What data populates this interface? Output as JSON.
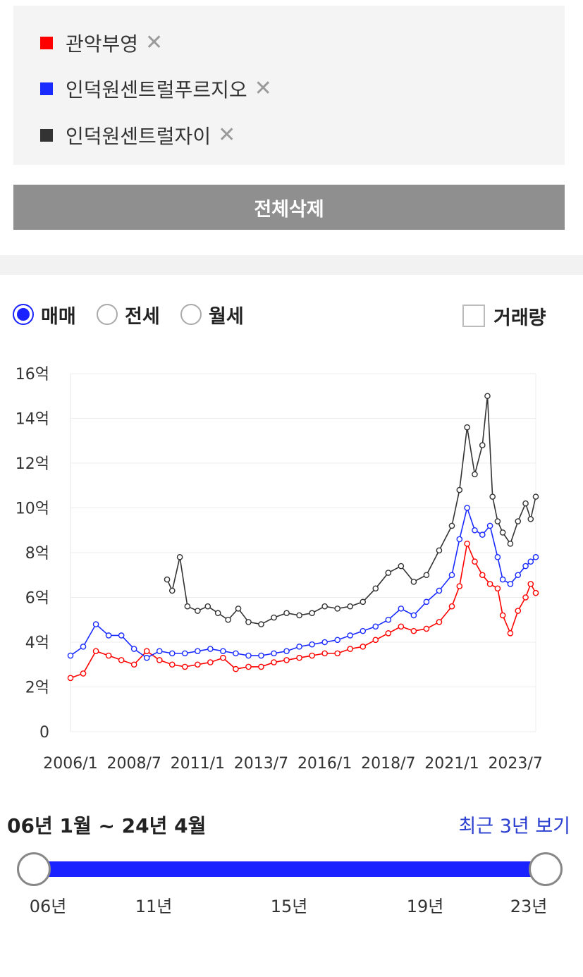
{
  "legend": {
    "items": [
      {
        "name": "관악부영",
        "color": "#ff0000"
      },
      {
        "name": "인덕원센트럴푸르지오",
        "color": "#1a2bff"
      },
      {
        "name": "인덕원센트럴자이",
        "color": "#333333"
      }
    ],
    "remove_glyph": "✕"
  },
  "delete_all_label": "전체삭제",
  "trade_types": {
    "options": [
      "매매",
      "전세",
      "월세"
    ],
    "selected": "매매"
  },
  "volume_label": "거래량",
  "chart_data": {
    "type": "line",
    "y_ticks": [
      "0",
      "2억",
      "4억",
      "6억",
      "8억",
      "10억",
      "12억",
      "14억",
      "16억"
    ],
    "ylim": [
      0,
      16
    ],
    "x_ticks": [
      "2006/1",
      "2008/7",
      "2011/1",
      "2013/7",
      "2016/1",
      "2018/7",
      "2021/1",
      "2023/7"
    ],
    "xlim": [
      2006.0,
      2024.3
    ],
    "grid": true,
    "series": [
      {
        "name": "관악부영",
        "color": "#ff0000",
        "x": [
          2006.0,
          2006.5,
          2007.0,
          2007.5,
          2008.0,
          2008.5,
          2009.0,
          2009.5,
          2010.0,
          2010.5,
          2011.0,
          2011.5,
          2012.0,
          2012.5,
          2013.0,
          2013.5,
          2014.0,
          2014.5,
          2015.0,
          2015.5,
          2016.0,
          2016.5,
          2017.0,
          2017.5,
          2018.0,
          2018.5,
          2019.0,
          2019.5,
          2020.0,
          2020.5,
          2021.0,
          2021.3,
          2021.6,
          2021.9,
          2022.2,
          2022.5,
          2022.8,
          2023.0,
          2023.3,
          2023.6,
          2023.9,
          2024.1,
          2024.3
        ],
        "y": [
          2.4,
          2.6,
          3.6,
          3.4,
          3.2,
          3.0,
          3.6,
          3.2,
          3.0,
          2.9,
          3.0,
          3.1,
          3.3,
          2.8,
          2.9,
          2.9,
          3.1,
          3.2,
          3.3,
          3.4,
          3.5,
          3.5,
          3.7,
          3.8,
          4.1,
          4.4,
          4.7,
          4.5,
          4.6,
          4.9,
          5.6,
          6.5,
          8.4,
          7.6,
          7.0,
          6.6,
          6.4,
          5.2,
          4.4,
          5.4,
          6.0,
          6.6,
          6.2
        ]
      },
      {
        "name": "인덕원센트럴푸르지오",
        "color": "#1a2bff",
        "x": [
          2006.0,
          2006.5,
          2007.0,
          2007.5,
          2008.0,
          2008.5,
          2009.0,
          2009.5,
          2010.0,
          2010.5,
          2011.0,
          2011.5,
          2012.0,
          2012.5,
          2013.0,
          2013.5,
          2014.0,
          2014.5,
          2015.0,
          2015.5,
          2016.0,
          2016.5,
          2017.0,
          2017.5,
          2018.0,
          2018.5,
          2019.0,
          2019.5,
          2020.0,
          2020.5,
          2021.0,
          2021.3,
          2021.6,
          2021.9,
          2022.2,
          2022.5,
          2022.8,
          2023.0,
          2023.3,
          2023.6,
          2023.9,
          2024.1,
          2024.3
        ],
        "y": [
          3.4,
          3.8,
          4.8,
          4.3,
          4.3,
          3.7,
          3.3,
          3.6,
          3.5,
          3.5,
          3.6,
          3.7,
          3.6,
          3.5,
          3.4,
          3.4,
          3.5,
          3.6,
          3.8,
          3.9,
          4.0,
          4.1,
          4.3,
          4.5,
          4.7,
          5.0,
          5.5,
          5.2,
          5.8,
          6.3,
          7.0,
          8.6,
          10.0,
          9.0,
          8.8,
          9.2,
          7.8,
          6.8,
          6.6,
          7.0,
          7.4,
          7.6,
          7.8
        ]
      },
      {
        "name": "인덕원센트럴자이",
        "color": "#333333",
        "x": [
          2009.8,
          2010.0,
          2010.3,
          2010.6,
          2011.0,
          2011.4,
          2011.8,
          2012.2,
          2012.6,
          2013.0,
          2013.5,
          2014.0,
          2014.5,
          2015.0,
          2015.5,
          2016.0,
          2016.5,
          2017.0,
          2017.5,
          2018.0,
          2018.5,
          2019.0,
          2019.5,
          2020.0,
          2020.5,
          2021.0,
          2021.3,
          2021.6,
          2021.9,
          2022.2,
          2022.4,
          2022.6,
          2022.8,
          2023.0,
          2023.3,
          2023.6,
          2023.9,
          2024.1,
          2024.3
        ],
        "y": [
          6.8,
          6.3,
          7.8,
          5.6,
          5.4,
          5.6,
          5.3,
          5.0,
          5.5,
          4.9,
          4.8,
          5.1,
          5.3,
          5.2,
          5.3,
          5.6,
          5.5,
          5.6,
          5.8,
          6.4,
          7.1,
          7.4,
          6.7,
          7.0,
          8.1,
          9.2,
          10.8,
          13.6,
          11.5,
          12.8,
          15.0,
          10.5,
          9.4,
          8.9,
          8.4,
          9.4,
          10.2,
          9.5,
          10.5
        ]
      }
    ]
  },
  "period": {
    "label": "06년 1월 ~ 24년 4월",
    "recent_link": "최근 3년 보기",
    "ticks": [
      "06년",
      "11년",
      "15년",
      "19년",
      "23년"
    ]
  }
}
